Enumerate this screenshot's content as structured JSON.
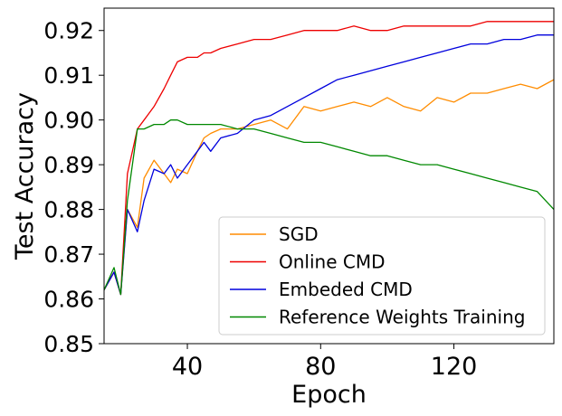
{
  "chart_data": {
    "type": "line",
    "title": "",
    "xlabel": "Epoch",
    "ylabel": "Test Accuracy",
    "xlim": [
      15,
      150
    ],
    "ylim": [
      0.85,
      0.925
    ],
    "x_ticks": [
      40,
      80,
      120
    ],
    "x_tick_labels": [
      "40",
      "80",
      "120"
    ],
    "y_ticks": [
      0.85,
      0.86,
      0.87,
      0.88,
      0.89,
      0.9,
      0.91,
      0.92
    ],
    "y_tick_labels": [
      "0.85",
      "0.86",
      "0.87",
      "0.88",
      "0.89",
      "0.90",
      "0.91",
      "0.92"
    ],
    "legend_position": "bottom-right",
    "x": [
      15,
      18,
      20,
      22,
      25,
      27,
      30,
      33,
      35,
      37,
      40,
      43,
      45,
      47,
      50,
      55,
      60,
      65,
      70,
      75,
      80,
      85,
      90,
      95,
      100,
      105,
      110,
      115,
      120,
      125,
      130,
      135,
      140,
      145,
      150
    ],
    "series": [
      {
        "name": "SGD",
        "color": "#ff8c00",
        "values": [
          0.862,
          0.866,
          0.861,
          0.88,
          0.876,
          0.887,
          0.891,
          0.888,
          0.886,
          0.889,
          0.888,
          0.893,
          0.896,
          0.897,
          0.898,
          0.898,
          0.899,
          0.9,
          0.898,
          0.903,
          0.902,
          0.903,
          0.904,
          0.903,
          0.905,
          0.903,
          0.902,
          0.905,
          0.904,
          0.906,
          0.906,
          0.907,
          0.908,
          0.907,
          0.909
        ]
      },
      {
        "name": "Online CMD",
        "color": "#ee0000",
        "values": [
          0.862,
          0.866,
          0.861,
          0.888,
          0.898,
          0.9,
          0.903,
          0.907,
          0.91,
          0.913,
          0.914,
          0.914,
          0.915,
          0.915,
          0.916,
          0.917,
          0.918,
          0.918,
          0.919,
          0.92,
          0.92,
          0.92,
          0.921,
          0.92,
          0.92,
          0.921,
          0.921,
          0.921,
          0.921,
          0.921,
          0.922,
          0.922,
          0.922,
          0.922,
          0.922
        ]
      },
      {
        "name": "Embeded CMD",
        "color": "#0000dd",
        "values": [
          0.862,
          0.866,
          0.861,
          0.88,
          0.875,
          0.882,
          0.889,
          0.888,
          0.89,
          0.887,
          0.89,
          0.893,
          0.895,
          0.893,
          0.896,
          0.897,
          0.9,
          0.901,
          0.903,
          0.905,
          0.907,
          0.909,
          0.91,
          0.911,
          0.912,
          0.913,
          0.914,
          0.915,
          0.916,
          0.917,
          0.917,
          0.918,
          0.918,
          0.919,
          0.919
        ]
      },
      {
        "name": "Reference Weights Training",
        "color": "#008800",
        "values": [
          0.862,
          0.867,
          0.861,
          0.882,
          0.898,
          0.898,
          0.899,
          0.899,
          0.9,
          0.9,
          0.899,
          0.899,
          0.899,
          0.899,
          0.899,
          0.898,
          0.898,
          0.897,
          0.896,
          0.895,
          0.895,
          0.894,
          0.893,
          0.892,
          0.892,
          0.891,
          0.89,
          0.89,
          0.889,
          0.888,
          0.887,
          0.886,
          0.885,
          0.884,
          0.88
        ]
      }
    ]
  }
}
